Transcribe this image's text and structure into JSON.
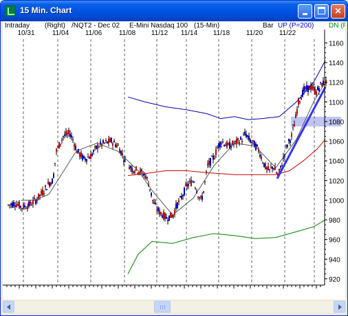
{
  "window": {
    "title": "15 Min. Chart",
    "controls": {
      "minimize": "minimize",
      "maximize": "maximize",
      "close": "✕"
    }
  },
  "header": {
    "mode": "Intraday",
    "scale_side": "(Right)",
    "symbol": "/NQT2 - Dec 02",
    "description": "E-Mini Nasdaq 100",
    "interval": "(15-Min)",
    "bar_type": "Bar",
    "up_label": "UP (P=200)",
    "dn_label": "DN (P"
  },
  "colors": {
    "up_label": "#0000cc",
    "dn_label": "#008000",
    "upper_band": "#0000aa",
    "lower_band": "#008000",
    "mid_line": "#cc0000",
    "ma_line": "#555555",
    "trendline": "#3333ee",
    "price_highlight": "#bfc4f2",
    "bar_up": "#cc0000",
    "bar_down": "#0000cc"
  },
  "chart_data": {
    "type": "candlestick",
    "x_labels": [
      "10/31",
      "11/04",
      "11/06",
      "11/08",
      "11/12",
      "11/14",
      "11/18",
      "11/20",
      "11/22"
    ],
    "y_ticks": [
      920,
      940,
      960,
      980,
      1000,
      1020,
      1040,
      1060,
      1080,
      1100,
      1120,
      1140,
      1160
    ],
    "ylim": [
      913,
      1163
    ],
    "highlighted_price": 1080,
    "grid": "vertical dashed",
    "price_path": [
      [
        0,
        995
      ],
      [
        10,
        997
      ],
      [
        20,
        993
      ],
      [
        30,
        995
      ],
      [
        40,
        1000
      ],
      [
        50,
        1008
      ],
      [
        60,
        1018
      ],
      [
        65,
        1020
      ],
      [
        70,
        1050
      ],
      [
        80,
        1065
      ],
      [
        90,
        1068
      ],
      [
        95,
        1060
      ],
      [
        100,
        1050
      ],
      [
        110,
        1042
      ],
      [
        120,
        1045
      ],
      [
        130,
        1055
      ],
      [
        140,
        1058
      ],
      [
        150,
        1060
      ],
      [
        160,
        1055
      ],
      [
        165,
        1048
      ],
      [
        170,
        1040
      ],
      [
        180,
        1032
      ],
      [
        190,
        1030
      ],
      [
        200,
        1025
      ],
      [
        205,
        1015
      ],
      [
        210,
        1000
      ],
      [
        215,
        992
      ],
      [
        220,
        988
      ],
      [
        230,
        982
      ],
      [
        240,
        985
      ],
      [
        245,
        995
      ],
      [
        250,
        1000
      ],
      [
        260,
        1015
      ],
      [
        270,
        1020
      ],
      [
        275,
        1008
      ],
      [
        280,
        1000
      ],
      [
        283,
        1005
      ],
      [
        290,
        1035
      ],
      [
        300,
        1045
      ],
      [
        305,
        1055
      ],
      [
        310,
        1060
      ],
      [
        320,
        1055
      ],
      [
        330,
        1058
      ],
      [
        340,
        1062
      ],
      [
        345,
        1068
      ],
      [
        350,
        1062
      ],
      [
        360,
        1055
      ],
      [
        365,
        1050
      ],
      [
        370,
        1040
      ],
      [
        375,
        1032
      ],
      [
        380,
        1030
      ],
      [
        385,
        1035
      ],
      [
        392,
        1025
      ],
      [
        395,
        1030
      ],
      [
        405,
        1055
      ],
      [
        412,
        1065
      ],
      [
        417,
        1080
      ],
      [
        422,
        1100
      ],
      [
        430,
        1112
      ],
      [
        440,
        1115
      ],
      [
        448,
        1110
      ],
      [
        455,
        1118
      ],
      [
        462,
        1120
      ]
    ],
    "series": [
      {
        "values": [
          [
            175,
            1105
          ],
          [
            200,
            1100
          ],
          [
            230,
            1095
          ],
          [
            260,
            1092
          ],
          [
            290,
            1088
          ],
          [
            310,
            1083
          ],
          [
            330,
            1085
          ],
          [
            350,
            1082
          ],
          [
            370,
            1083
          ],
          [
            395,
            1085
          ],
          [
            420,
            1100
          ],
          [
            445,
            1120
          ],
          [
            462,
            1142
          ]
        ]
      },
      {
        "values": [
          [
            175,
            1025
          ],
          [
            200,
            1027
          ],
          [
            230,
            1030
          ],
          [
            260,
            1030
          ],
          [
            290,
            1028
          ],
          [
            310,
            1027
          ],
          [
            330,
            1026
          ],
          [
            360,
            1026
          ],
          [
            390,
            1026
          ],
          [
            410,
            1030
          ],
          [
            430,
            1040
          ],
          [
            450,
            1052
          ],
          [
            462,
            1062
          ]
        ]
      },
      {
        "values": [
          [
            175,
            925
          ],
          [
            190,
            945
          ],
          [
            210,
            958
          ],
          [
            240,
            956
          ],
          [
            270,
            962
          ],
          [
            300,
            966
          ],
          [
            330,
            964
          ],
          [
            360,
            961
          ],
          [
            390,
            962
          ],
          [
            420,
            968
          ],
          [
            445,
            973
          ],
          [
            462,
            980
          ]
        ]
      },
      {
        "values": [
          [
            20,
            1000
          ],
          [
            40,
            1000
          ],
          [
            60,
            1006
          ],
          [
            80,
            1028
          ],
          [
            100,
            1050
          ],
          [
            130,
            1058
          ],
          [
            160,
            1050
          ],
          [
            190,
            1030
          ],
          [
            210,
            1010
          ],
          [
            240,
            985
          ],
          [
            270,
            1002
          ],
          [
            300,
            1035
          ],
          [
            330,
            1058
          ],
          [
            360,
            1055
          ],
          [
            390,
            1033
          ],
          [
            420,
            1062
          ],
          [
            445,
            1100
          ],
          [
            462,
            1120
          ]
        ]
      }
    ],
    "trendline": [
      [
        392,
        1022
      ],
      [
        462,
        1115
      ]
    ]
  }
}
